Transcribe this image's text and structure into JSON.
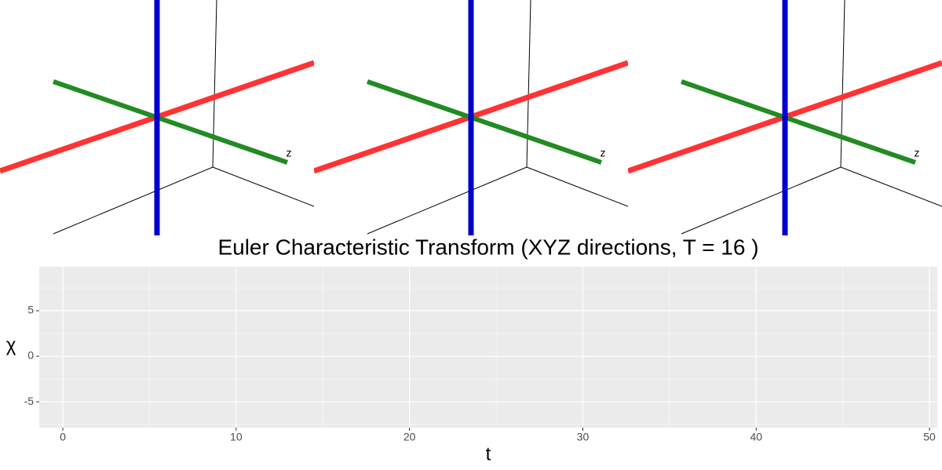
{
  "scenes": [
    {
      "label": "z"
    },
    {
      "label": "z"
    },
    {
      "label": "z"
    }
  ],
  "chart_data": {
    "type": "line",
    "title": "Euler Characteristic Transform (XYZ directions, T = 16 )",
    "xlabel": "t",
    "ylabel": "χ",
    "series": [],
    "xlim": [
      -1.36,
      50.45
    ],
    "ylim": [
      -7.84,
      9.83
    ],
    "xticks": [
      0,
      10,
      20,
      30,
      40,
      50
    ],
    "yticks": [
      -5,
      0,
      5
    ],
    "x_minor_grid": [
      5,
      15,
      25,
      35,
      45
    ],
    "y_minor_grid": [
      -7.5,
      -2.5,
      2.5,
      7.5
    ],
    "grid": true
  }
}
